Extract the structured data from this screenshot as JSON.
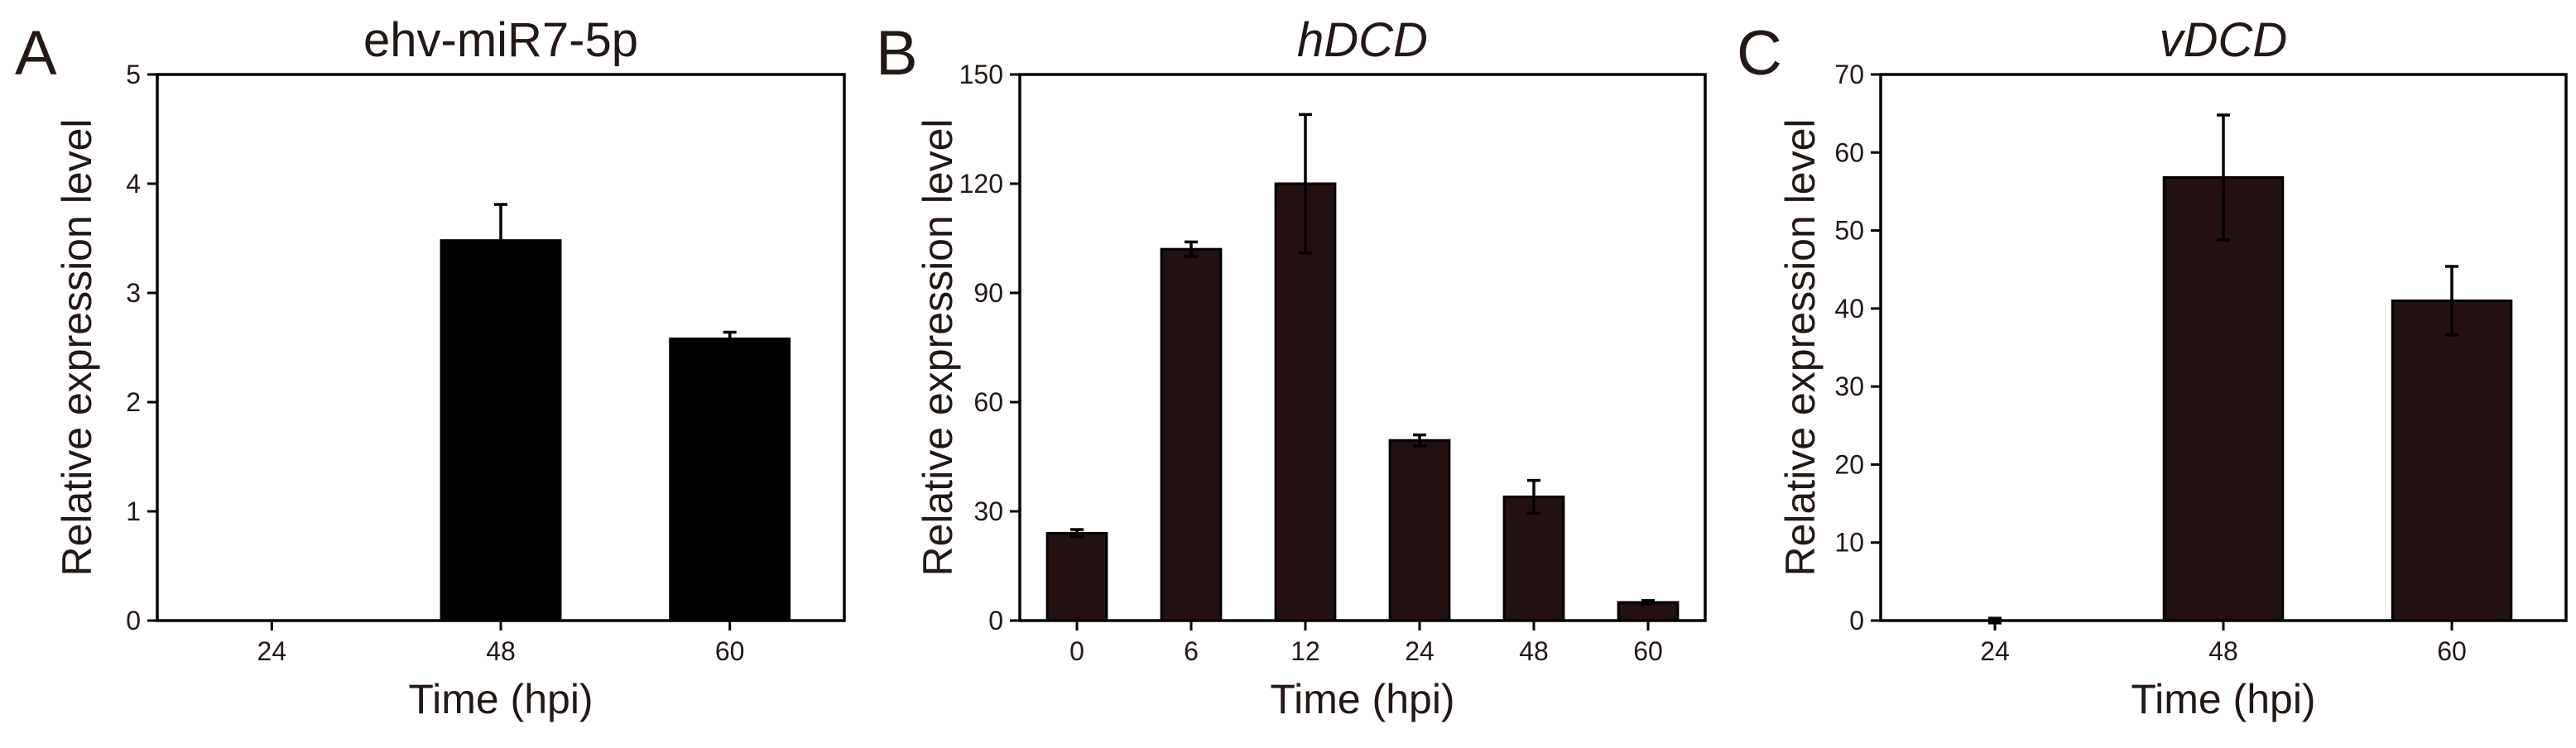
{
  "chart_data": [
    {
      "panel": "A",
      "type": "bar",
      "title": "ehv-miR7-5p",
      "title_italic": false,
      "xlabel": "Time (hpi)",
      "ylabel": "Relative expression level",
      "categories": [
        "24",
        "48",
        "60"
      ],
      "values": [
        0,
        3.48,
        2.58
      ],
      "errors": [
        0,
        0.33,
        0.06
      ],
      "ylim": [
        0,
        5
      ],
      "yticks": [
        0,
        1,
        2,
        3,
        4,
        5
      ],
      "bar_color": "#000000",
      "grid": false
    },
    {
      "panel": "B",
      "type": "bar",
      "title": "hDCD",
      "title_italic": true,
      "xlabel": "Time (hpi)",
      "ylabel": "Relative expression level",
      "categories": [
        "0",
        "6",
        "12",
        "24",
        "48",
        "60"
      ],
      "values": [
        24,
        102,
        120,
        49.5,
        34,
        5
      ],
      "errors": [
        1,
        2,
        19,
        1.5,
        4.5,
        0.5
      ],
      "ylim": [
        0,
        150
      ],
      "yticks": [
        0,
        30,
        60,
        90,
        120,
        150
      ],
      "bar_color": "#231010",
      "grid": false
    },
    {
      "panel": "C",
      "type": "bar",
      "title": "vDCD",
      "title_italic": true,
      "xlabel": "Time (hpi)",
      "ylabel": "Relative expression level",
      "categories": [
        "24",
        "48",
        "60"
      ],
      "values": [
        0,
        56.8,
        41
      ],
      "errors": [
        0.3,
        8,
        4.4
      ],
      "ylim": [
        0,
        70
      ],
      "yticks": [
        0,
        10,
        20,
        30,
        40,
        50,
        60,
        70
      ],
      "bar_color": "#231010",
      "grid": false
    }
  ],
  "colors": {
    "axis": "#000000",
    "text": "#231815"
  }
}
